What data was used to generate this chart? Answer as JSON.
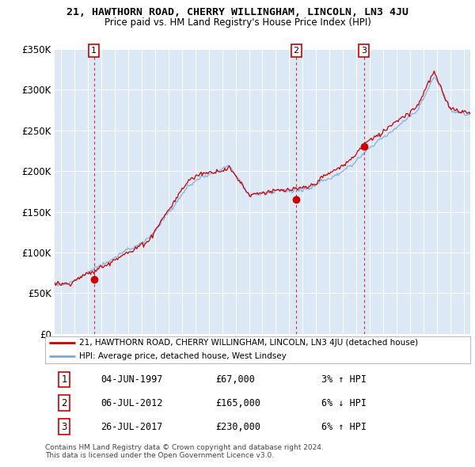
{
  "title": "21, HAWTHORN ROAD, CHERRY WILLINGHAM, LINCOLN, LN3 4JU",
  "subtitle": "Price paid vs. HM Land Registry's House Price Index (HPI)",
  "ylim": [
    0,
    350000
  ],
  "yticks": [
    0,
    50000,
    100000,
    150000,
    200000,
    250000,
    300000,
    350000
  ],
  "ytick_labels": [
    "£0",
    "£50K",
    "£100K",
    "£150K",
    "£200K",
    "£250K",
    "£300K",
    "£350K"
  ],
  "background_color": "#dce8f5",
  "hpi_line_color": "#7aaadd",
  "price_line_color": "#cc0000",
  "sale_dot_color": "#cc0000",
  "vline_color": "#cc0000",
  "sale_points": [
    {
      "date": 1997.43,
      "price": 67000,
      "label": "1"
    },
    {
      "date": 2012.52,
      "price": 165000,
      "label": "2"
    },
    {
      "date": 2017.57,
      "price": 230000,
      "label": "3"
    }
  ],
  "legend_entries": [
    "21, HAWTHORN ROAD, CHERRY WILLINGHAM, LINCOLN, LN3 4JU (detached house)",
    "HPI: Average price, detached house, West Lindsey"
  ],
  "table_rows": [
    [
      "1",
      "04-JUN-1997",
      "£67,000",
      "3% ↑ HPI"
    ],
    [
      "2",
      "06-JUL-2012",
      "£165,000",
      "6% ↓ HPI"
    ],
    [
      "3",
      "26-JUL-2017",
      "£230,000",
      "6% ↑ HPI"
    ]
  ],
  "footnote": "Contains HM Land Registry data © Crown copyright and database right 2024.\nThis data is licensed under the Open Government Licence v3.0.",
  "xlim_start": 1994.5,
  "xlim_end": 2025.5
}
